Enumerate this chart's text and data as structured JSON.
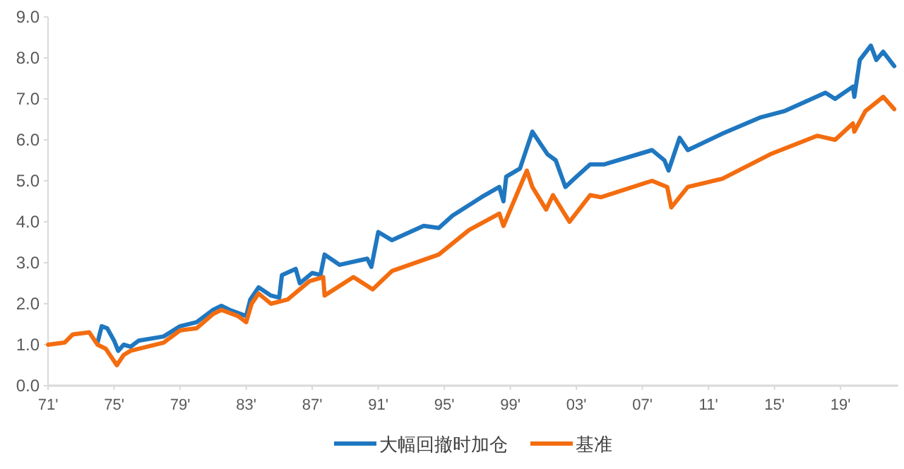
{
  "chart_data": {
    "type": "line",
    "xlim": [
      "1971-01",
      "2022-07"
    ],
    "ylim": [
      0,
      9
    ],
    "xticks": [
      {
        "value": "1971",
        "label": "71'"
      },
      {
        "value": "1975",
        "label": "75'"
      },
      {
        "value": "1979",
        "label": "79'"
      },
      {
        "value": "1983",
        "label": "83'"
      },
      {
        "value": "1987",
        "label": "87'"
      },
      {
        "value": "1991",
        "label": "91'"
      },
      {
        "value": "1995",
        "label": "95'"
      },
      {
        "value": "1999",
        "label": "99'"
      },
      {
        "value": "2003",
        "label": "03'"
      },
      {
        "value": "2007",
        "label": "07'"
      },
      {
        "value": "2011",
        "label": "11'"
      },
      {
        "value": "2015",
        "label": "15'"
      },
      {
        "value": "2019",
        "label": "19'"
      }
    ],
    "yticks": [
      {
        "value": 0,
        "label": "0.0"
      },
      {
        "value": 1,
        "label": "1.0"
      },
      {
        "value": 2,
        "label": "2.0"
      },
      {
        "value": 3,
        "label": "3.0"
      },
      {
        "value": 4,
        "label": "4.0"
      },
      {
        "value": 5,
        "label": "5.0"
      },
      {
        "value": 6,
        "label": "6.0"
      },
      {
        "value": 7,
        "label": "7.0"
      },
      {
        "value": 8,
        "label": "8.0"
      },
      {
        "value": 9,
        "label": "9.0"
      }
    ],
    "grid": false,
    "legend": "bottom",
    "line_style": "solid",
    "marker": "none",
    "series": [
      {
        "name": "大幅回撤时加仓",
        "color": "#1f77c0",
        "x": [
          "1974-01",
          "1974-04",
          "1974-08",
          "1975-01",
          "1975-04",
          "1975-08",
          "1976-01",
          "1976-07",
          "1978-01",
          "1979-01",
          "1980-01",
          "1981-01",
          "1981-07",
          "1982-01",
          "1983-01",
          "1983-04",
          "1983-10",
          "1984-07",
          "1985-01",
          "1985-03",
          "1986-01",
          "1986-04",
          "1987-01",
          "1987-07",
          "1987-10",
          "1988-09",
          "1990-05",
          "1990-08",
          "1991-01",
          "1991-11",
          "1993-10",
          "1994-09",
          "1995-07",
          "1997-04",
          "1998-05",
          "1998-08",
          "1998-10",
          "1999-08",
          "2000-05",
          "2000-11",
          "2001-04",
          "2001-10",
          "2002-05",
          "2003-01",
          "2003-11",
          "2004-09",
          "2007-08",
          "2008-05",
          "2008-08",
          "2009-04",
          "2009-10",
          "2011-11",
          "2014-03",
          "2015-08",
          "2018-02",
          "2018-09",
          "2019-10",
          "2019-11",
          "2020-03",
          "2020-11",
          "2021-03",
          "2021-08",
          "2022-04"
        ],
        "values": [
          1.05,
          1.45,
          1.4,
          1.1,
          0.85,
          1.0,
          0.95,
          1.1,
          1.2,
          1.45,
          1.55,
          1.85,
          1.95,
          1.85,
          1.7,
          2.1,
          2.4,
          2.2,
          2.15,
          2.7,
          2.85,
          2.5,
          2.75,
          2.7,
          3.2,
          2.95,
          3.1,
          2.9,
          3.75,
          3.55,
          3.9,
          3.85,
          4.15,
          4.6,
          4.85,
          4.5,
          5.1,
          5.3,
          6.2,
          5.9,
          5.65,
          5.5,
          4.85,
          5.1,
          5.4,
          5.4,
          5.75,
          5.5,
          5.25,
          6.05,
          5.75,
          6.15,
          6.55,
          6.7,
          7.15,
          7.0,
          7.3,
          7.05,
          7.95,
          8.3,
          7.95,
          8.15,
          7.8
        ]
      },
      {
        "name": "基准",
        "color": "#f36c0f",
        "x": [
          "1971-01",
          "1972-01",
          "1972-07",
          "1973-07",
          "1974-01",
          "1974-07",
          "1975-03",
          "1975-08",
          "1976-01",
          "1977-01",
          "1978-01",
          "1979-01",
          "1980-01",
          "1981-01",
          "1981-07",
          "1982-07",
          "1983-01",
          "1983-05",
          "1983-10",
          "1984-07",
          "1985-07",
          "1986-11",
          "1987-09",
          "1987-10",
          "1989-07",
          "1990-09",
          "1991-11",
          "1994-09",
          "1996-07",
          "1998-05",
          "1998-08",
          "2000-01",
          "2000-05",
          "2001-03",
          "2001-08",
          "2002-08",
          "2003-11",
          "2004-07",
          "2007-08",
          "2008-07",
          "2008-10",
          "2009-10",
          "2011-11",
          "2014-10",
          "2017-08",
          "2018-09",
          "2019-10",
          "2019-11",
          "2020-07",
          "2021-08",
          "2022-04"
        ],
        "values": [
          1.0,
          1.05,
          1.25,
          1.3,
          1.0,
          0.9,
          0.5,
          0.75,
          0.85,
          0.95,
          1.05,
          1.35,
          1.4,
          1.75,
          1.85,
          1.7,
          1.55,
          2.0,
          2.25,
          2.0,
          2.1,
          2.55,
          2.65,
          2.2,
          2.65,
          2.35,
          2.8,
          3.2,
          3.8,
          4.2,
          3.9,
          5.25,
          4.85,
          4.3,
          4.65,
          4.0,
          4.65,
          4.6,
          5.0,
          4.85,
          4.35,
          4.85,
          5.05,
          5.65,
          6.1,
          6.0,
          6.4,
          6.2,
          6.7,
          7.05,
          6.75
        ]
      }
    ]
  }
}
